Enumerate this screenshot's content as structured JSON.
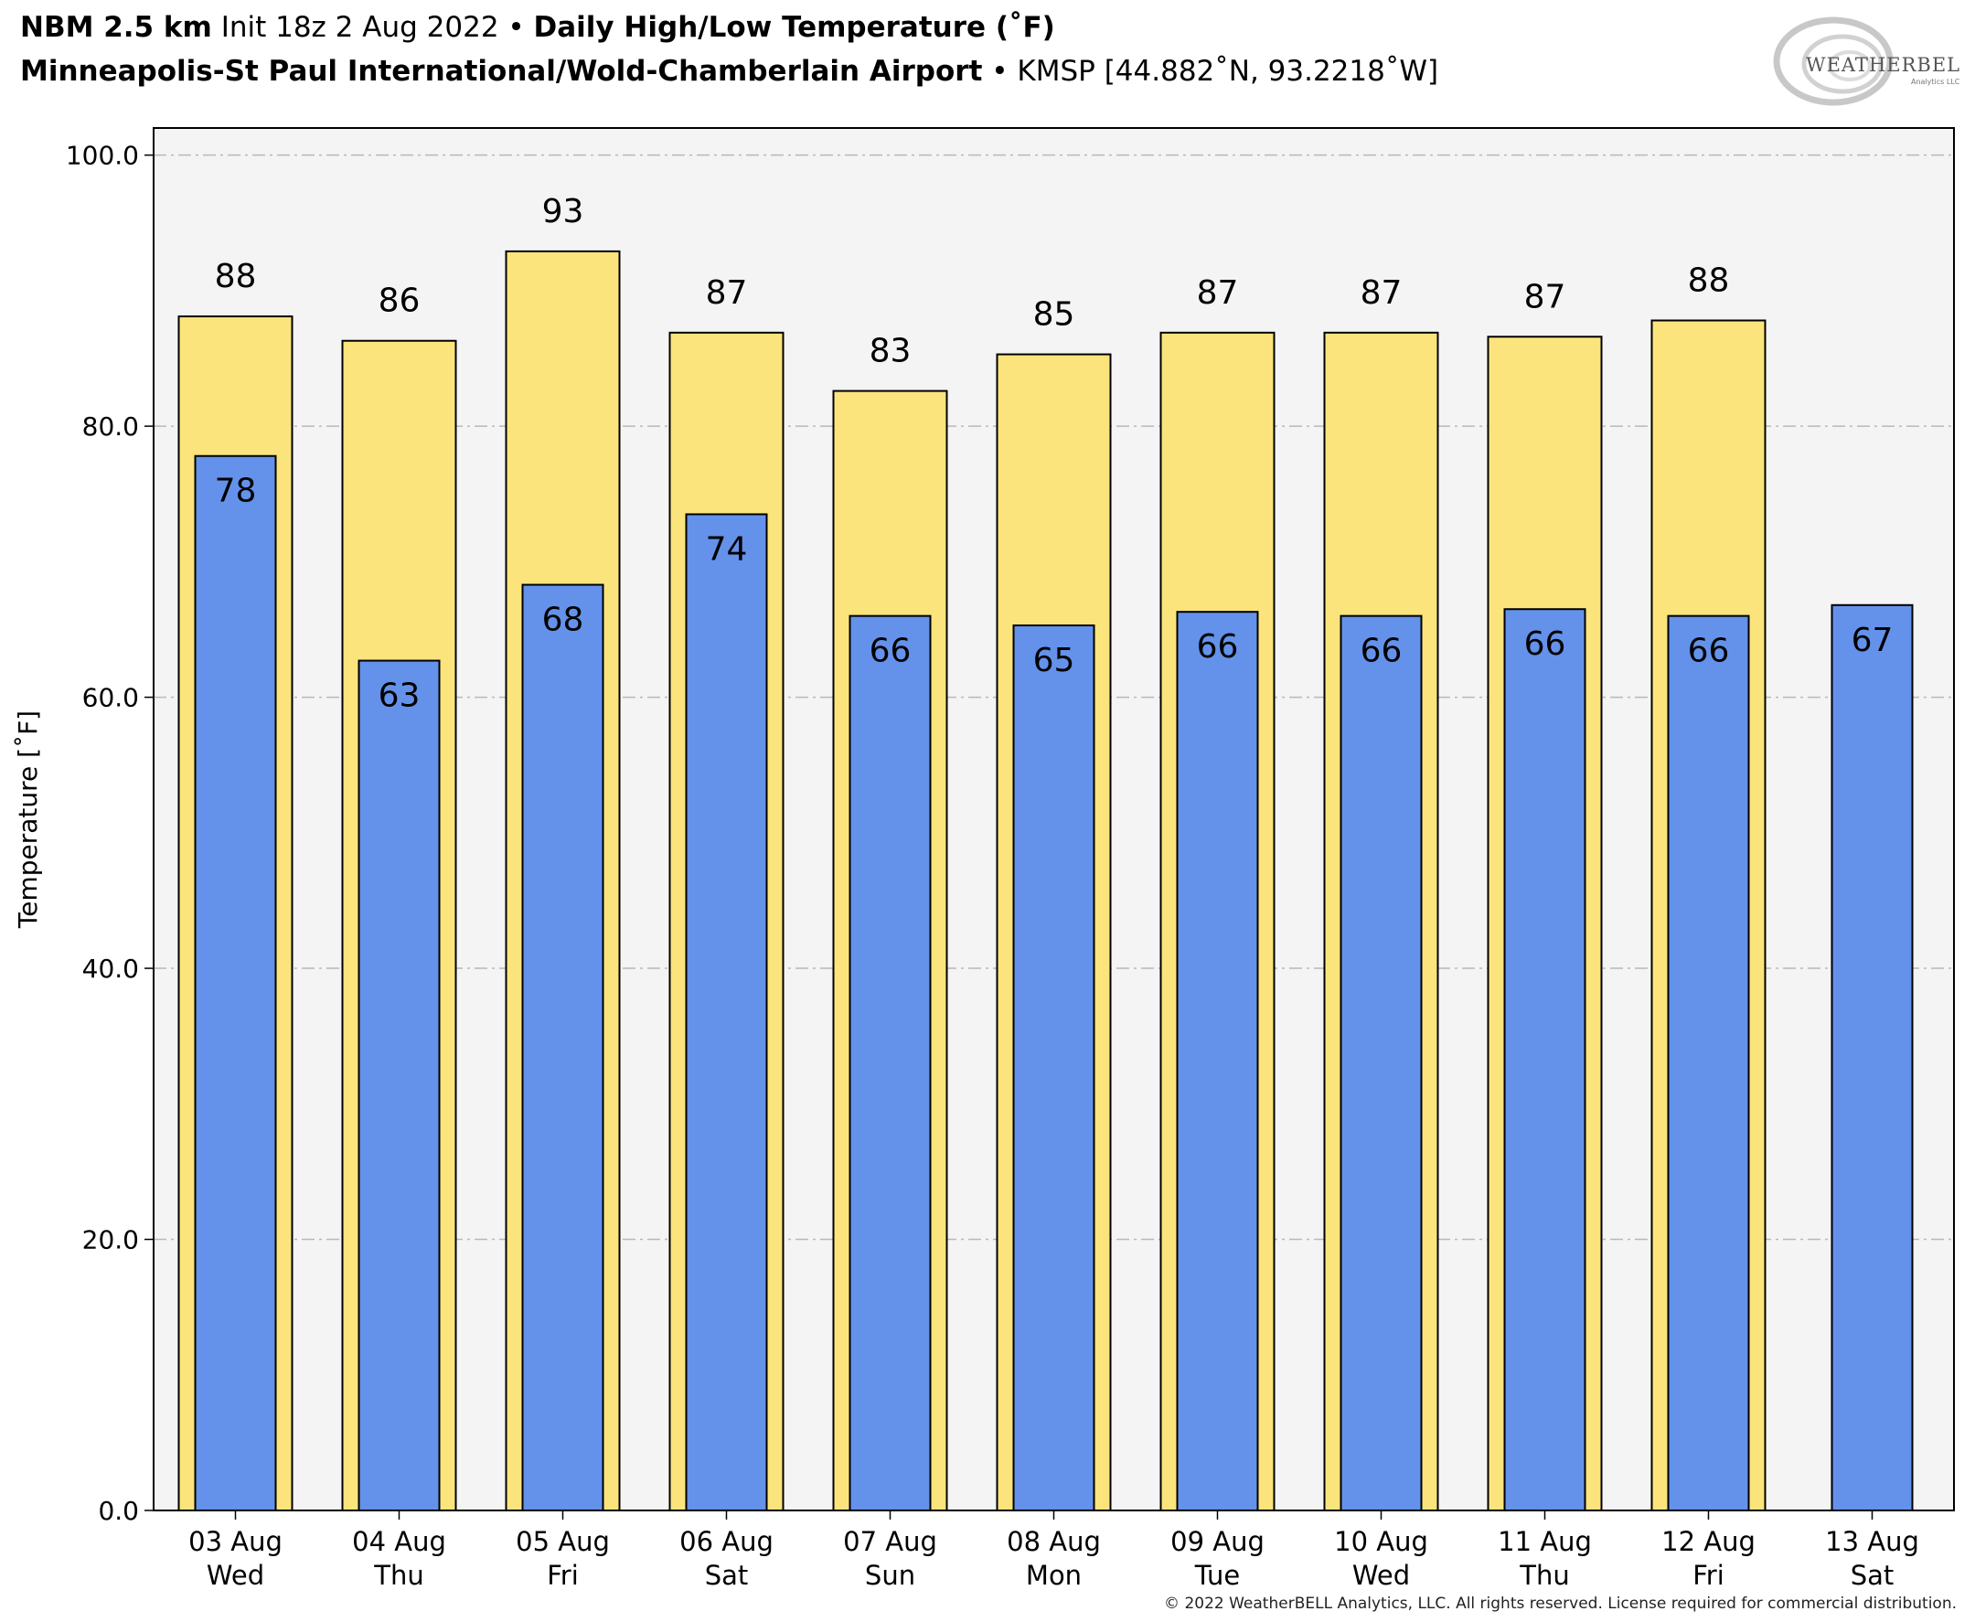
{
  "header": {
    "line1": [
      {
        "text": "NBM 2.5 km",
        "bold": true
      },
      {
        "text": " Init 18z 2 Aug 2022 • ",
        "bold": false
      },
      {
        "text": "Daily High/Low Temperature (˚F)",
        "bold": true
      }
    ],
    "line2": [
      {
        "text": "Minneapolis-St Paul International/Wold-Chamberlain Airport",
        "bold": true
      },
      {
        "text": " • KMSP [44.882˚N, 93.2218˚W]",
        "bold": false
      }
    ]
  },
  "logo": {
    "text": "WEATHERBELL",
    "subtext": "Analytics LLC"
  },
  "copyright": "© 2022 WeatherBELL Analytics, LLC. All rights reserved. License required for commercial distribution.",
  "chart_data": {
    "type": "bar",
    "ylabel": "Temperature [˚F]",
    "ylim": [
      0,
      102
    ],
    "yticks": [
      "0.0",
      "20.0",
      "40.0",
      "60.0",
      "80.0",
      "100.0"
    ],
    "grid": true,
    "categories": [
      [
        "03 Aug",
        "Wed"
      ],
      [
        "04 Aug",
        "Thu"
      ],
      [
        "05 Aug",
        "Fri"
      ],
      [
        "06 Aug",
        "Sat"
      ],
      [
        "07 Aug",
        "Sun"
      ],
      [
        "08 Aug",
        "Mon"
      ],
      [
        "09 Aug",
        "Tue"
      ],
      [
        "10 Aug",
        "Wed"
      ],
      [
        "11 Aug",
        "Thu"
      ],
      [
        "12 Aug",
        "Fri"
      ],
      [
        "13 Aug",
        "Sat"
      ]
    ],
    "series": [
      {
        "kind": "high",
        "color": "#fce47d",
        "values": [
          88.1,
          86.3,
          92.9,
          86.9,
          82.6,
          85.3,
          86.9,
          86.9,
          86.6,
          87.8,
          null
        ],
        "labels": [
          "88",
          "86",
          "93",
          "87",
          "83",
          "85",
          "87",
          "87",
          "87",
          "88",
          null
        ]
      },
      {
        "kind": "low",
        "color": "#6492ea",
        "values": [
          77.8,
          62.7,
          68.3,
          73.5,
          66.0,
          65.3,
          66.3,
          66.0,
          66.5,
          66.0,
          66.8
        ],
        "labels": [
          "78",
          "63",
          "68",
          "74",
          "66",
          "65",
          "66",
          "66",
          "66",
          "66",
          "67"
        ]
      }
    ]
  }
}
